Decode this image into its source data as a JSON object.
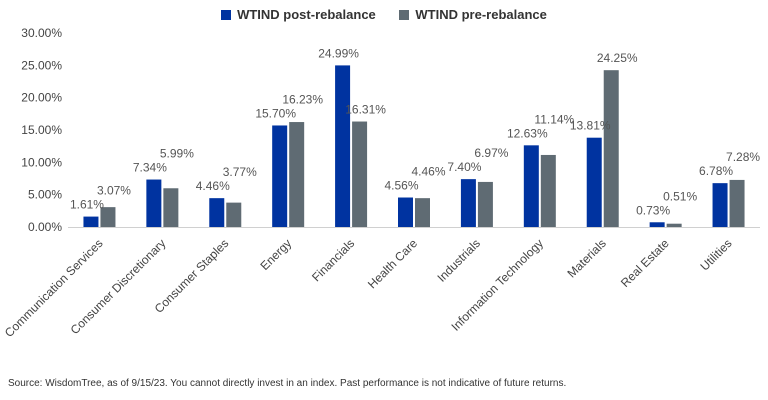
{
  "chart_data": {
    "type": "bar",
    "categories": [
      "Communication Services",
      "Consumer Discretionary",
      "Consumer Staples",
      "Energy",
      "Financials",
      "Health Care",
      "Industrials",
      "Information Technology",
      "Materials",
      "Real Estate",
      "Utilities"
    ],
    "series": [
      {
        "name": "WTIND post-rebalance",
        "color": "#0033A0",
        "values": [
          1.61,
          7.34,
          4.46,
          15.7,
          24.99,
          4.56,
          7.4,
          12.63,
          13.81,
          0.73,
          6.78
        ],
        "labels": [
          "1.61%",
          "7.34%",
          "4.46%",
          "15.70%",
          "24.99%",
          "4.56%",
          "7.40%",
          "12.63%",
          "13.81%",
          "0.73%",
          "6.78%"
        ]
      },
      {
        "name": "WTIND pre-rebalance",
        "color": "#5F6B73",
        "values": [
          3.07,
          5.99,
          3.77,
          16.23,
          16.31,
          4.46,
          6.97,
          11.14,
          24.25,
          0.51,
          7.28
        ],
        "labels": [
          "3.07%",
          "5.99%",
          "3.77%",
          "16.23%",
          "16.31%",
          "4.46%",
          "6.97%",
          "11.14%",
          "24.25%",
          "0.51%",
          "7.28%"
        ]
      }
    ],
    "ylim": [
      0,
      30
    ],
    "yticks": [
      "0.00%",
      "5.00%",
      "10.00%",
      "15.00%",
      "20.00%",
      "25.00%",
      "30.00%"
    ],
    "legend": "top-center",
    "grid": false
  },
  "legend": {
    "post_label": "WTIND post-rebalance",
    "pre_label": "WTIND pre-rebalance"
  },
  "source": "Source: WisdomTree, as of 9/15/23. You cannot directly invest in an index. Past performance is not indicative of future returns."
}
